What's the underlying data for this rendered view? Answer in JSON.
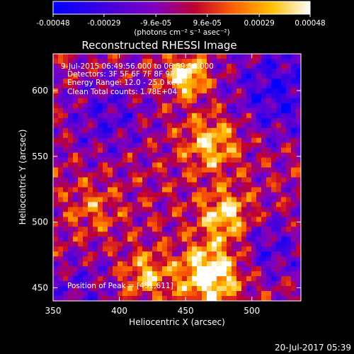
{
  "chart_data": {
    "type": "heatmap",
    "title": "Reconstructed RHESSI Image",
    "xlabel": "Heliocentric X (arcsec)",
    "ylabel": "Heliocentric Y (arcsec)",
    "xlim": [
      350,
      537
    ],
    "ylim": [
      440,
      628
    ],
    "x_ticks": [
      "350",
      "400",
      "450",
      "500"
    ],
    "y_ticks": [
      "450",
      "500",
      "550",
      "600"
    ],
    "colorbar": {
      "range": [
        -0.00048,
        0.00048
      ],
      "tick_labels": [
        "-0.00048",
        "-0.00029",
        "-9.6e-05",
        "9.6e-05",
        "0.00029",
        "0.00048"
      ],
      "unit_label": "(photons cm⁻² s⁻¹ asec⁻²)",
      "colors": [
        "#0000ff",
        "#8000c0",
        "#c00030",
        "#ff6000",
        "#ffc000",
        "#ffffff"
      ]
    },
    "annotations": {
      "time_range": "9-Jul-2015 06:49:56.000 to 06:59:56.000",
      "detectors": "Detectors: 3F 5F 6F 7F 8F 9F 1",
      "energy": "Energy Range: 12.0 - 25.0 keV",
      "clean": "Clean    Total counts: 1.78E+04",
      "peak": "Position of Peak = [451,611]"
    },
    "peak": [
      451,
      611
    ]
  },
  "footer_timestamp": "20-Jul-2017 05:39"
}
